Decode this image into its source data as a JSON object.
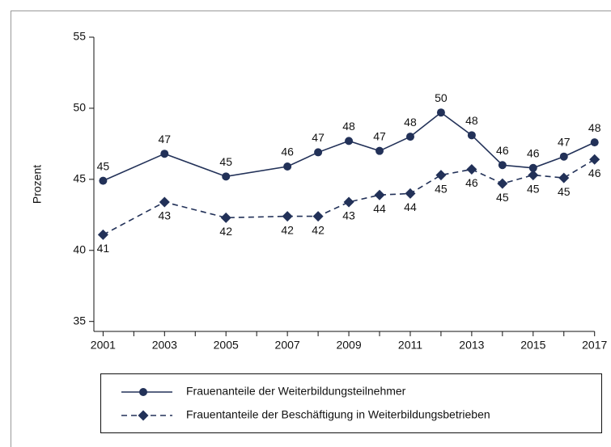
{
  "chart_data": {
    "type": "line",
    "y_label": "Prozent",
    "x": [
      2001,
      2003,
      2005,
      2007,
      2008,
      2009,
      2010,
      2011,
      2012,
      2013,
      2014,
      2015,
      2016,
      2017
    ],
    "series": [
      {
        "name": "Frauenanteile der Weiterbildungsteilnehmer",
        "color": "#223158",
        "marker": "circle",
        "dash": "solid",
        "values": [
          44.9,
          46.8,
          45.2,
          45.9,
          46.9,
          47.7,
          47.0,
          48.0,
          49.7,
          48.1,
          46.0,
          45.8,
          46.6,
          47.6
        ],
        "value_labels": [
          "45",
          "47",
          "45",
          "46",
          "47",
          "48",
          "47",
          "48",
          "50",
          "48",
          "46",
          "46",
          "47",
          "48"
        ]
      },
      {
        "name": "Frauentanteile der Beschäftigung in Weiterbildungsbetrieben",
        "color": "#223158",
        "marker": "diamond",
        "dash": "dashed",
        "values": [
          41.1,
          43.4,
          42.3,
          42.4,
          42.4,
          43.4,
          43.9,
          44.0,
          45.3,
          45.7,
          44.7,
          45.3,
          45.1,
          46.4
        ],
        "value_labels": [
          "41",
          "43",
          "42",
          "42",
          "42",
          "43",
          "44",
          "44",
          "45",
          "46",
          "45",
          "45",
          "45",
          "46"
        ]
      }
    ],
    "xlim": [
      2000.7,
      2017.35
    ],
    "xticks": [
      2001,
      2003,
      2005,
      2007,
      2009,
      2011,
      2013,
      2015,
      2017
    ],
    "xticks_minor": [
      2002,
      2004,
      2006,
      2008,
      2010,
      2012,
      2014,
      2016
    ],
    "ylim": [
      34.3,
      55
    ],
    "yticks": [
      35,
      40,
      45,
      50,
      55
    ],
    "grid": false
  }
}
